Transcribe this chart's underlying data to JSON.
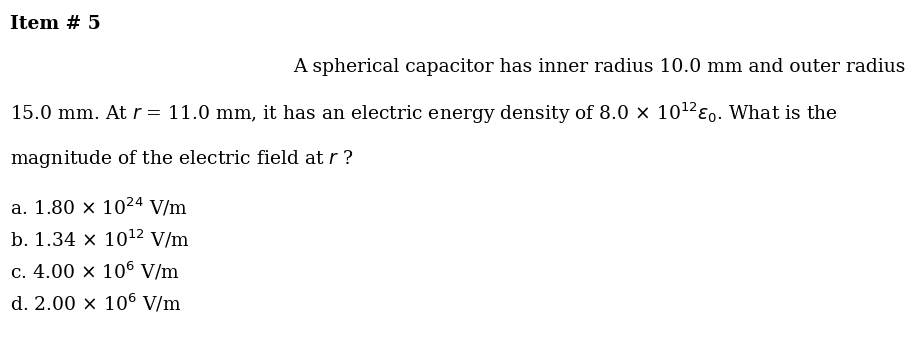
{
  "background_color": "#ffffff",
  "item_label": "Item # 5",
  "line1": "A spherical capacitor has inner radius 10.0 mm and outer radius",
  "line2": "15.0 mm. At $r$ = 11.0 mm, it has an electric energy density of 8.0 $\\times$ 10$^{12}\\varepsilon_0$. What is the",
  "line3": "magnitude of the electric field at $r$ ?",
  "choices": [
    "a. 1.80 $\\times$ 10$^{24}$ V/m",
    "b. 1.34 $\\times$ 10$^{12}$ V/m",
    "c. 4.00 $\\times$ 10$^{6}$ V/m",
    "d. 2.00 $\\times$ 10$^{6}$ V/m"
  ],
  "font_size": 13.5,
  "bold_font_size": 13.5,
  "figsize": [
    9.13,
    3.52
  ],
  "dpi": 100
}
